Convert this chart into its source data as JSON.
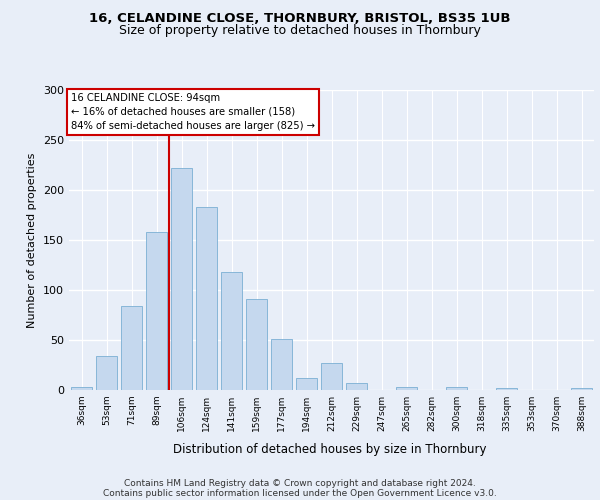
{
  "title1": "16, CELANDINE CLOSE, THORNBURY, BRISTOL, BS35 1UB",
  "title2": "Size of property relative to detached houses in Thornbury",
  "xlabel": "Distribution of detached houses by size in Thornbury",
  "ylabel": "Number of detached properties",
  "bar_labels": [
    "36sqm",
    "53sqm",
    "71sqm",
    "89sqm",
    "106sqm",
    "124sqm",
    "141sqm",
    "159sqm",
    "177sqm",
    "194sqm",
    "212sqm",
    "229sqm",
    "247sqm",
    "265sqm",
    "282sqm",
    "300sqm",
    "318sqm",
    "335sqm",
    "353sqm",
    "370sqm",
    "388sqm"
  ],
  "bar_values": [
    3,
    34,
    84,
    158,
    222,
    183,
    118,
    91,
    51,
    12,
    27,
    7,
    0,
    3,
    0,
    3,
    0,
    2,
    0,
    0,
    2
  ],
  "bar_color": "#c5d8ee",
  "bar_edge_color": "#7bafd4",
  "vline_color": "#cc0000",
  "vline_x": 3.5,
  "annotation_line1": "16 CELANDINE CLOSE: 94sqm",
  "annotation_line2": "← 16% of detached houses are smaller (158)",
  "annotation_line3": "84% of semi-detached houses are larger (825) →",
  "footer1": "Contains HM Land Registry data © Crown copyright and database right 2024.",
  "footer2": "Contains public sector information licensed under the Open Government Licence v3.0.",
  "ylim": [
    0,
    300
  ],
  "yticks": [
    0,
    50,
    100,
    150,
    200,
    250,
    300
  ],
  "bg_color": "#e8eef8",
  "grid_color": "#d0d8e8",
  "white_grid": "#ffffff"
}
